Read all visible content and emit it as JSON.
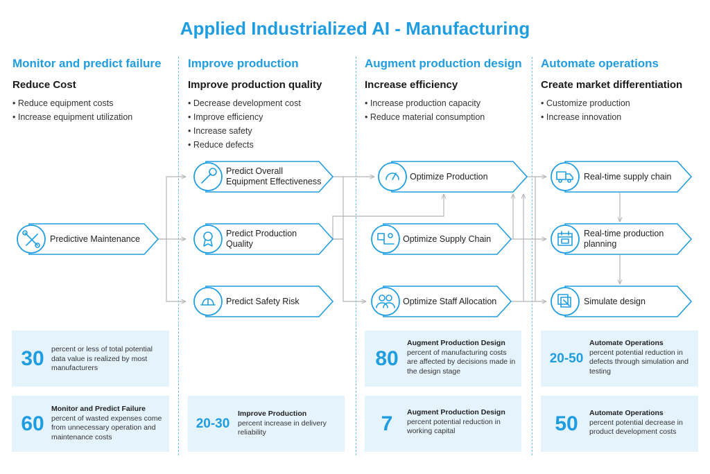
{
  "title": "Applied Industrialized AI - Manufacturing",
  "columns": [
    {
      "heading": "Monitor and predict failure",
      "subheading": "Reduce Cost",
      "bullets": [
        "Reduce equipment costs",
        "Increase equipment utilization"
      ]
    },
    {
      "heading": "Improve production",
      "subheading": "Improve production quality",
      "bullets": [
        "Decrease development cost",
        "Improve efficiency",
        "Increase safety",
        "Reduce defects"
      ]
    },
    {
      "heading": "Augment production design",
      "subheading": "Increase efficiency",
      "bullets": [
        "Increase production capacity",
        "Reduce material consumption"
      ]
    },
    {
      "heading": "Automate operations",
      "subheading": "Create market differentiation",
      "bullets": [
        "Customize production",
        "Increase innovation"
      ]
    }
  ],
  "nodes": {
    "predictive_maintenance": "Predictive Maintenance",
    "predict_oee_1": "Predict Overall",
    "predict_oee_2": "Equipment Effectiveness",
    "predict_quality_1": "Predict Production",
    "predict_quality_2": "Quality",
    "predict_safety": "Predict Safety Risk",
    "optimize_production": "Optimize Production",
    "optimize_supply": "Optimize Supply Chain",
    "optimize_staff": "Optimize Staff Allocation",
    "realtime_supply": "Real-time supply chain",
    "realtime_planning_1": "Real-time production",
    "realtime_planning_2": "planning",
    "simulate_design": "Simulate design"
  },
  "icons": {
    "predictive_maintenance": "tools-icon",
    "predict_oee": "wrench-icon",
    "predict_quality": "award-ribbon-icon",
    "predict_safety": "hard-hat-icon",
    "optimize_production": "gauge-icon",
    "optimize_supply": "supply-chain-icon",
    "optimize_staff": "people-icon",
    "realtime_supply": "truck-icon",
    "realtime_planning": "calendar-icon",
    "simulate_design": "design-icon"
  },
  "stats": {
    "s1": {
      "value": "30",
      "heading": "",
      "text": "percent or less of total potential data value is realized by most manufacturers"
    },
    "s2": {
      "value": "60",
      "heading": "Monitor and Predict Failure",
      "text": "percent of wasted expenses come from unnecessary operation and maintenance costs"
    },
    "s3": {
      "value": "20-30",
      "heading": "Improve Production",
      "text": "percent increase in delivery reliability"
    },
    "s4": {
      "value": "80",
      "heading": "Augment Production Design",
      "text": "percent of manufacturing costs are affected by decisions made in the design stage"
    },
    "s5": {
      "value": "7",
      "heading": "Augment Production Design",
      "text": "percent potential reduction in working capital"
    },
    "s6": {
      "value": "20-50",
      "heading": "Automate Operations",
      "text": "percent potential reduction in defects through simulation and testing"
    },
    "s7": {
      "value": "50",
      "heading": "Automate Operations",
      "text": "percent potential decrease in product development costs"
    }
  },
  "colors": {
    "accent": "#1f9de0",
    "stat_bg": "#e4f3fc",
    "connector": "#b5b5b5"
  }
}
